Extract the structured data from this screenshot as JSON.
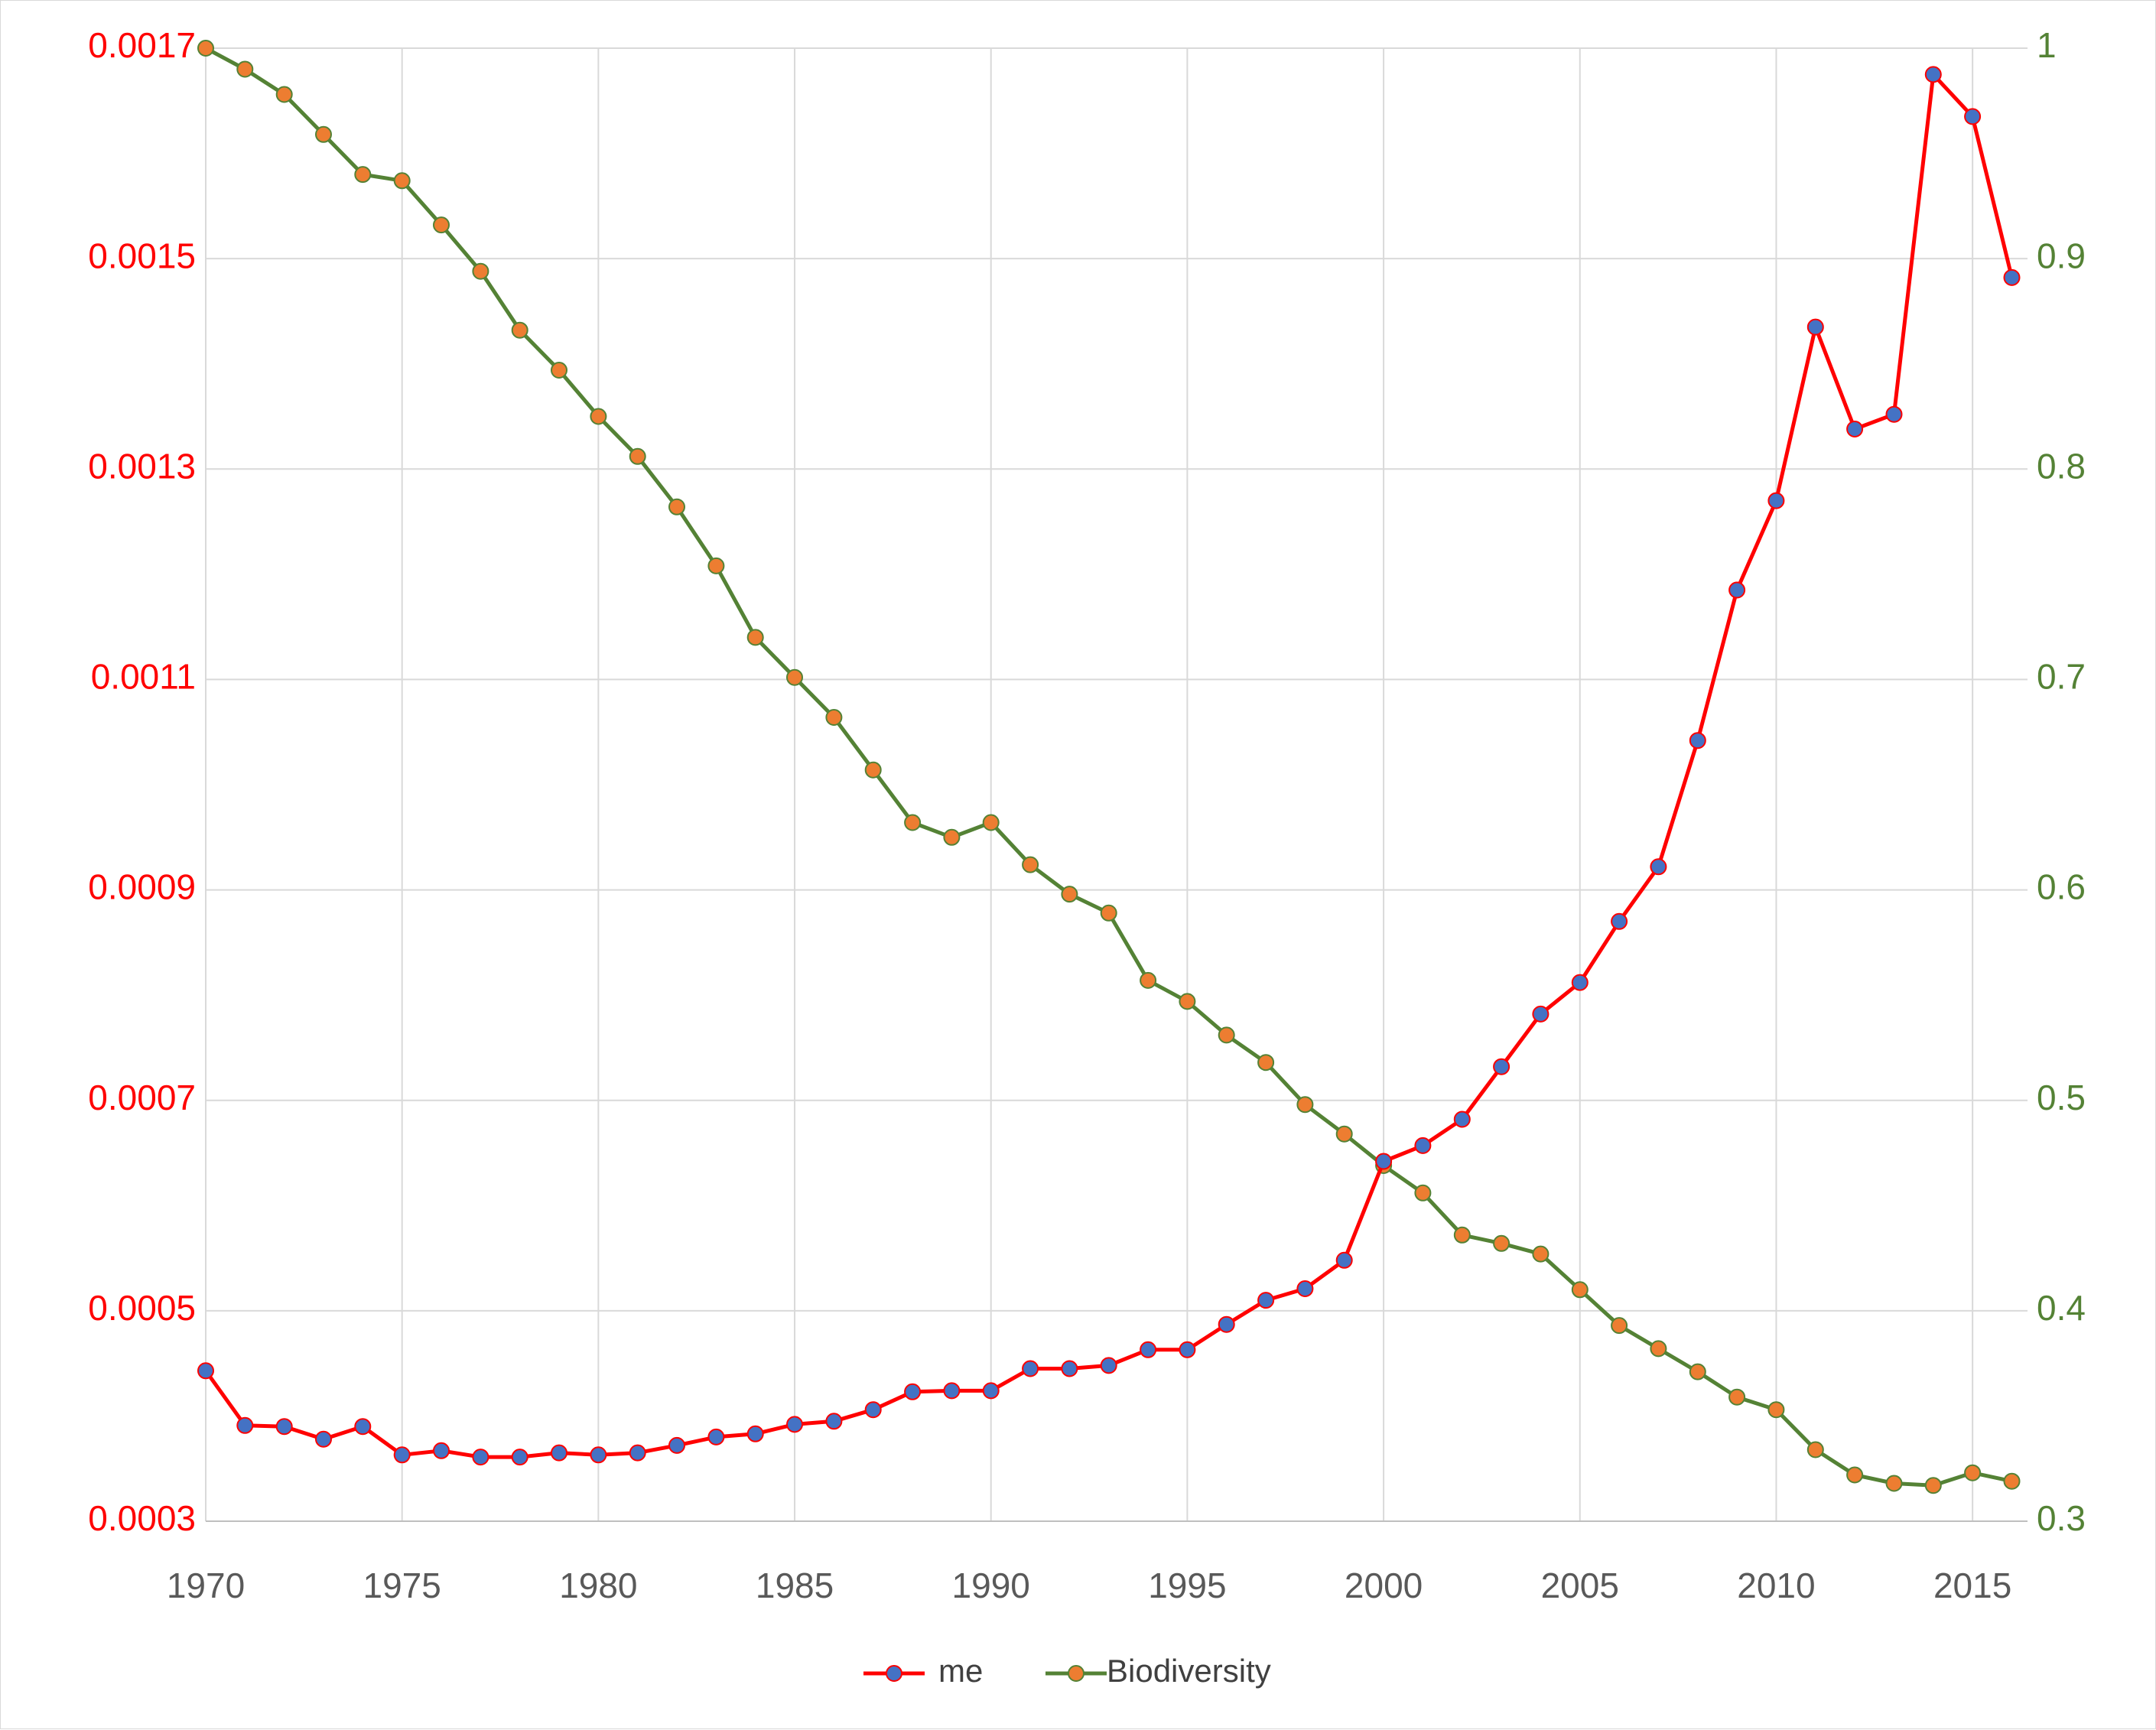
{
  "chart_data": {
    "type": "line",
    "x": [
      1970,
      1971,
      1972,
      1973,
      1974,
      1975,
      1976,
      1977,
      1978,
      1979,
      1980,
      1981,
      1982,
      1983,
      1984,
      1985,
      1986,
      1987,
      1988,
      1989,
      1990,
      1991,
      1992,
      1993,
      1994,
      1995,
      1996,
      1997,
      1998,
      1999,
      2000,
      2001,
      2002,
      2003,
      2004,
      2005,
      2006,
      2007,
      2008,
      2009,
      2010,
      2011,
      2012,
      2013,
      2014,
      2015,
      2016
    ],
    "xlim": [
      1970,
      2016.4
    ],
    "x_ticks": [
      "1970",
      "1975",
      "1980",
      "1985",
      "1990",
      "1995",
      "2000",
      "2005",
      "2010",
      "2015"
    ],
    "x_tick_values": [
      1970,
      1975,
      1980,
      1985,
      1990,
      1995,
      2000,
      2005,
      2010,
      2015
    ],
    "y_left": {
      "ylim": [
        0.0003,
        0.0017
      ],
      "ticks": [
        "0.0003",
        "0.0005",
        "0.0007",
        "0.0009",
        "0.0011",
        "0.0013",
        "0.0015",
        "0.0017"
      ],
      "tick_values": [
        0.0003,
        0.0005,
        0.0007,
        0.0009,
        0.0011,
        0.0013,
        0.0015,
        0.0017
      ],
      "color": "#ff0000"
    },
    "y_right": {
      "ylim": [
        0.3,
        1.0
      ],
      "ticks": [
        "0.3",
        "0.4",
        "0.5",
        "0.6",
        "0.7",
        "0.8",
        "0.9",
        "1"
      ],
      "tick_values": [
        0.3,
        0.4,
        0.5,
        0.6,
        0.7,
        0.8,
        0.9,
        1.0
      ],
      "color": "#548235"
    },
    "grid": true,
    "legend_position": "bottom",
    "series": [
      {
        "name": "me",
        "axis": "left",
        "line_color": "#ff0000",
        "marker_color": "#4472c4",
        "values": [
          0.000443,
          0.000391,
          0.00039,
          0.000378,
          0.00039,
          0.000363,
          0.000367,
          0.000361,
          0.000361,
          0.000365,
          0.000363,
          0.000365,
          0.000372,
          0.00038,
          0.000383,
          0.000392,
          0.000395,
          0.000406,
          0.000423,
          0.000424,
          0.000424,
          0.000445,
          0.000445,
          0.000448,
          0.000463,
          0.000463,
          0.000487,
          0.00051,
          0.000521,
          0.000548,
          0.000642,
          0.000657,
          0.000682,
          0.000732,
          0.000782,
          0.000812,
          0.00087,
          0.000922,
          0.001042,
          0.001185,
          0.00127,
          0.001435,
          0.001338,
          0.001352,
          0.001675,
          0.001635,
          0.001482
        ]
      },
      {
        "name": "Biodiversity",
        "axis": "right",
        "line_color": "#548235",
        "marker_color": "#ed7d31",
        "values": [
          1.0,
          0.99,
          0.978,
          0.959,
          0.94,
          0.937,
          0.916,
          0.894,
          0.866,
          0.847,
          0.825,
          0.806,
          0.782,
          0.754,
          0.72,
          0.701,
          0.682,
          0.657,
          0.632,
          0.625,
          0.632,
          0.612,
          0.598,
          0.589,
          0.557,
          0.547,
          0.531,
          0.518,
          0.498,
          0.484,
          0.469,
          0.456,
          0.436,
          0.432,
          0.427,
          0.41,
          0.393,
          0.382,
          0.371,
          0.359,
          0.353,
          0.334,
          0.322,
          0.318,
          0.317,
          0.323,
          0.319
        ]
      }
    ]
  }
}
